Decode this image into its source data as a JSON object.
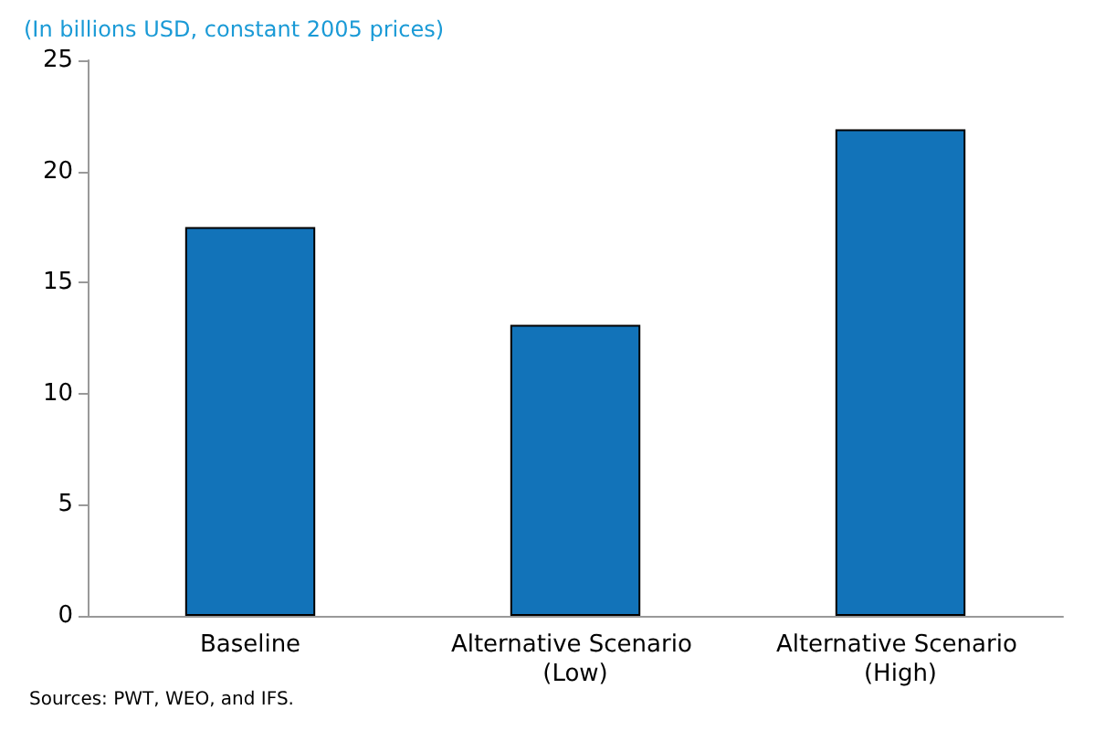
{
  "chart_data": {
    "type": "bar",
    "subtitle": "(In billions USD, constant 2005 prices)",
    "categories": [
      "Baseline",
      "Alternative Scenario (Low)",
      "Alternative Scenario (High)"
    ],
    "values": [
      17.5,
      13.1,
      21.9
    ],
    "color": "#1273b9",
    "ylim": [
      0,
      25
    ],
    "yticks": [
      0,
      5,
      10,
      15,
      20,
      25
    ],
    "grid": false,
    "annotations": [
      "Sources: PWT, WEO, and IFS."
    ]
  }
}
